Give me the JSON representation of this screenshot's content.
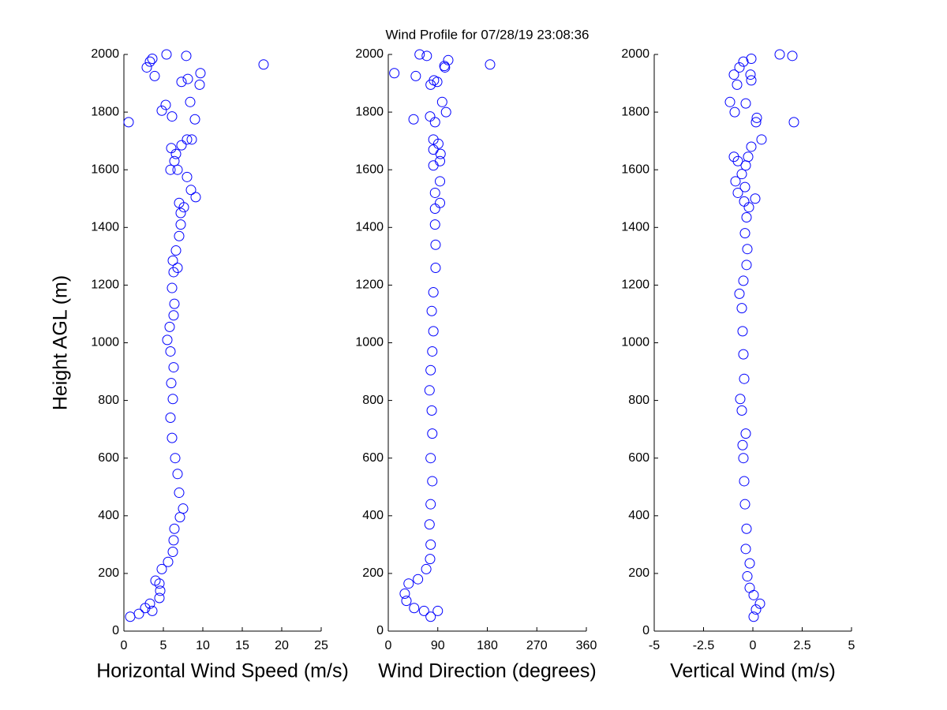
{
  "chart_data": [
    {
      "type": "scatter",
      "xlabel": "Horizontal Wind Speed (m/s)",
      "ylabel": "Height AGL (m)",
      "color": "#0000ff",
      "xlim": [
        0,
        25
      ],
      "xticks": [
        0,
        5,
        10,
        15,
        20,
        25
      ],
      "ylim": [
        0,
        2000
      ],
      "yticks": [
        0,
        200,
        400,
        600,
        800,
        1000,
        1200,
        1400,
        1600,
        1800,
        2000
      ],
      "x": [
        0.8,
        1.9,
        2.7,
        3.3,
        3.6,
        4.5,
        4.6,
        4.5,
        4.0,
        4.8,
        5.6,
        6.2,
        6.3,
        6.4,
        7.1,
        7.5,
        7.0,
        6.8,
        6.5,
        6.1,
        5.9,
        6.2,
        6.0,
        6.3,
        5.9,
        5.5,
        5.8,
        6.3,
        6.4,
        6.1,
        6.3,
        6.8,
        6.2,
        6.6,
        7.0,
        7.2,
        7.2,
        7.0,
        7.6,
        9.1,
        8.5,
        8.0,
        6.8,
        5.9,
        6.4,
        6.6,
        6.0,
        7.3,
        8.0,
        8.6,
        9.0,
        0.6,
        4.8,
        6.1,
        5.3,
        8.4,
        7.3,
        9.6,
        8.1,
        9.7,
        3.9,
        2.9,
        3.3,
        3.6,
        5.4,
        7.9,
        17.7
      ],
      "y": [
        50,
        60,
        80,
        95,
        70,
        115,
        140,
        165,
        175,
        215,
        240,
        275,
        315,
        355,
        395,
        425,
        480,
        545,
        600,
        670,
        740,
        805,
        860,
        915,
        970,
        1010,
        1055,
        1095,
        1135,
        1190,
        1245,
        1260,
        1285,
        1320,
        1370,
        1410,
        1450,
        1485,
        1470,
        1505,
        1530,
        1575,
        1600,
        1600,
        1630,
        1655,
        1675,
        1685,
        1705,
        1705,
        1775,
        1765,
        1805,
        1785,
        1825,
        1835,
        1905,
        1895,
        1915,
        1935,
        1925,
        1955,
        1975,
        1985,
        2000,
        1995,
        1965
      ]
    },
    {
      "type": "scatter",
      "title": "Wind Profile for  07/28/19 23:08:36",
      "xlabel": "Wind Direction (degrees)",
      "color": "#0000ff",
      "xlim": [
        0,
        360
      ],
      "xticks": [
        0,
        90,
        180,
        270,
        360
      ],
      "ylim": [
        0,
        2000
      ],
      "yticks": [
        0,
        200,
        400,
        600,
        800,
        1000,
        1200,
        1400,
        1600,
        1800,
        2000
      ],
      "x": [
        77,
        90,
        65,
        47,
        33,
        30,
        37,
        54,
        69,
        76,
        77,
        75,
        77,
        80,
        77,
        80,
        79,
        75,
        77,
        80,
        82,
        79,
        82,
        86,
        86,
        85,
        85,
        94,
        85,
        94,
        82,
        94,
        82,
        91,
        82,
        95,
        76,
        85,
        98,
        105,
        46,
        77,
        83,
        89,
        11,
        50,
        57,
        70,
        102,
        103,
        109,
        185
      ],
      "y": [
        50,
        70,
        70,
        80,
        105,
        130,
        165,
        180,
        215,
        250,
        300,
        370,
        440,
        520,
        600,
        685,
        765,
        835,
        905,
        970,
        1040,
        1110,
        1175,
        1260,
        1340,
        1410,
        1465,
        1485,
        1520,
        1560,
        1615,
        1630,
        1670,
        1690,
        1705,
        1655,
        1785,
        1765,
        1835,
        1800,
        1775,
        1895,
        1910,
        1905,
        1935,
        1925,
        2000,
        1995,
        1960,
        1955,
        1980,
        1965
      ]
    },
    {
      "type": "scatter",
      "xlabel": "Vertical Wind (m/s)",
      "color": "#0000ff",
      "xlim": [
        -5,
        5
      ],
      "xticks": [
        -5,
        -2.5,
        0,
        2.5,
        5
      ],
      "ylim": [
        0,
        2000
      ],
      "yticks": [
        0,
        200,
        400,
        600,
        800,
        1000,
        1200,
        1400,
        1600,
        1800,
        2000
      ],
      "x": [
        0.04,
        0.16,
        0.36,
        0.04,
        -0.16,
        -0.28,
        -0.16,
        -0.36,
        -0.32,
        -0.4,
        -0.44,
        -0.48,
        -0.52,
        -0.36,
        -0.56,
        -0.64,
        -0.44,
        -0.48,
        -0.52,
        -0.56,
        -0.68,
        -0.48,
        -0.32,
        -0.28,
        -0.4,
        -0.32,
        -0.2,
        0.12,
        -0.44,
        -0.76,
        -0.88,
        -0.4,
        -0.56,
        -0.36,
        -0.76,
        -0.96,
        -0.24,
        -0.08,
        0.44,
        0.2,
        0.16,
        2.08,
        -1.16,
        -0.92,
        -0.36,
        -0.08,
        -0.8,
        -0.96,
        -0.12,
        -0.68,
        -0.48,
        -0.08,
        1.36,
        2.0
      ],
      "y": [
        50,
        75,
        95,
        125,
        150,
        190,
        235,
        285,
        355,
        440,
        520,
        600,
        645,
        685,
        765,
        805,
        875,
        960,
        1040,
        1120,
        1170,
        1215,
        1270,
        1325,
        1380,
        1435,
        1470,
        1500,
        1490,
        1520,
        1560,
        1540,
        1585,
        1615,
        1630,
        1645,
        1645,
        1680,
        1705,
        1780,
        1765,
        1765,
        1835,
        1800,
        1830,
        1910,
        1895,
        1930,
        1930,
        1955,
        1975,
        1985,
        2000,
        1995
      ]
    }
  ]
}
